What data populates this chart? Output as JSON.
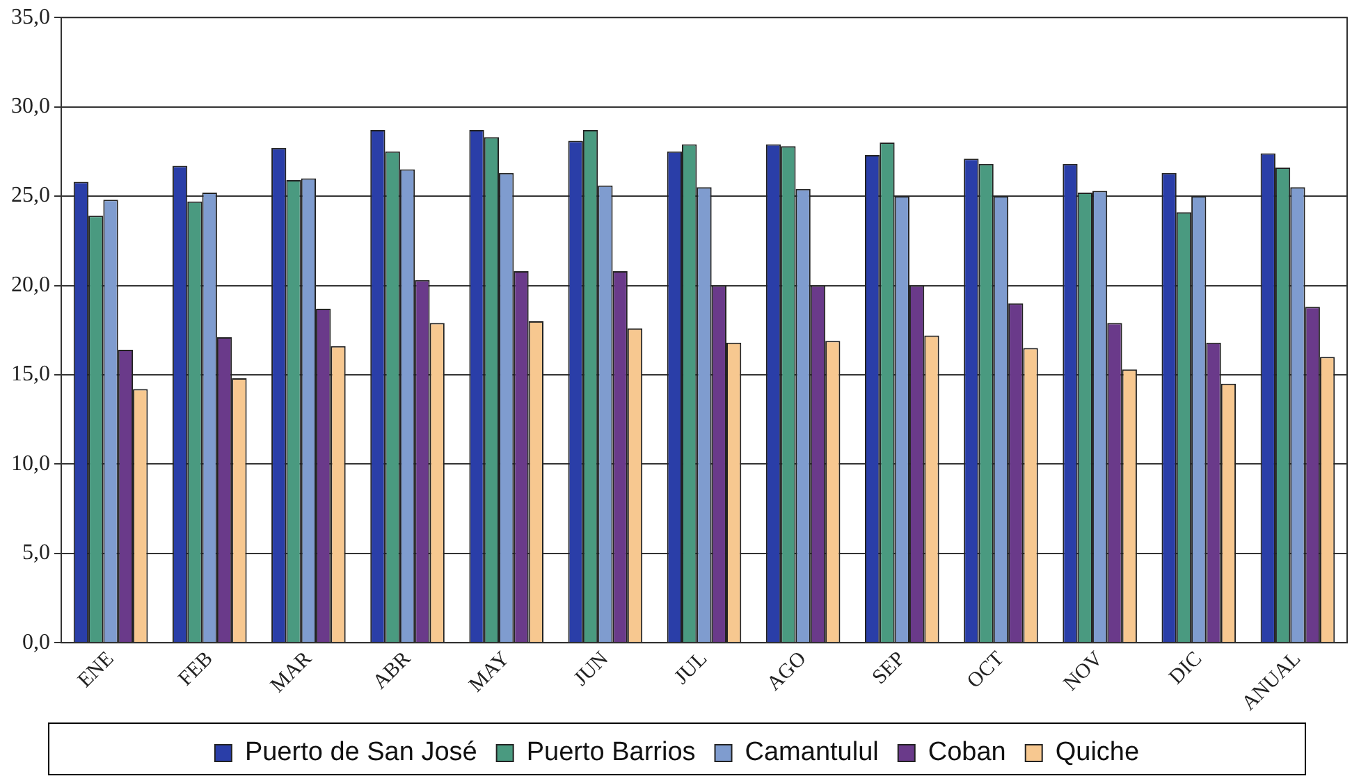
{
  "chart_data": {
    "type": "bar",
    "categories": [
      "ENE",
      "FEB",
      "MAR",
      "ABR",
      "MAY",
      "JUN",
      "JUL",
      "AGO",
      "SEP",
      "OCT",
      "NOV",
      "DIC",
      "ANUAL"
    ],
    "series": [
      {
        "name": "Puerto de San José",
        "color": "#2a3ea8",
        "values": [
          25.8,
          26.7,
          27.7,
          28.7,
          28.7,
          28.1,
          27.5,
          27.9,
          27.3,
          27.1,
          26.8,
          26.3,
          27.4
        ]
      },
      {
        "name": "Puerto Barrios",
        "color": "#4a9a80",
        "values": [
          23.9,
          24.7,
          25.9,
          27.5,
          28.3,
          28.7,
          27.9,
          27.8,
          28.0,
          26.8,
          25.2,
          24.1,
          26.6
        ]
      },
      {
        "name": "Camantulul",
        "color": "#7f9ccf",
        "values": [
          24.8,
          25.2,
          26.0,
          26.5,
          26.3,
          25.6,
          25.5,
          25.4,
          25.0,
          25.0,
          25.3,
          25.0,
          25.5
        ]
      },
      {
        "name": "Coban",
        "color": "#6a3a8a",
        "values": [
          16.4,
          17.1,
          18.7,
          20.3,
          20.8,
          20.8,
          20.0,
          20.0,
          20.0,
          19.0,
          17.9,
          16.8,
          18.8
        ]
      },
      {
        "name": "Quiche",
        "color": "#f7c890",
        "values": [
          14.2,
          14.8,
          16.6,
          17.9,
          18.0,
          17.6,
          16.8,
          16.9,
          17.2,
          16.5,
          15.3,
          14.5,
          16.0
        ]
      }
    ],
    "ylim": [
      0,
      35
    ],
    "yticks": [
      {
        "value": 0,
        "label": "0,0"
      },
      {
        "value": 5,
        "label": "5,0"
      },
      {
        "value": 10,
        "label": "10,0"
      },
      {
        "value": 15,
        "label": "15,0"
      },
      {
        "value": 20,
        "label": "20,0"
      },
      {
        "value": 25,
        "label": "25,0"
      },
      {
        "value": 30,
        "label": "30,0"
      },
      {
        "value": 35,
        "label": "35,0"
      }
    ],
    "grid": "y",
    "legend": "bottom"
  }
}
